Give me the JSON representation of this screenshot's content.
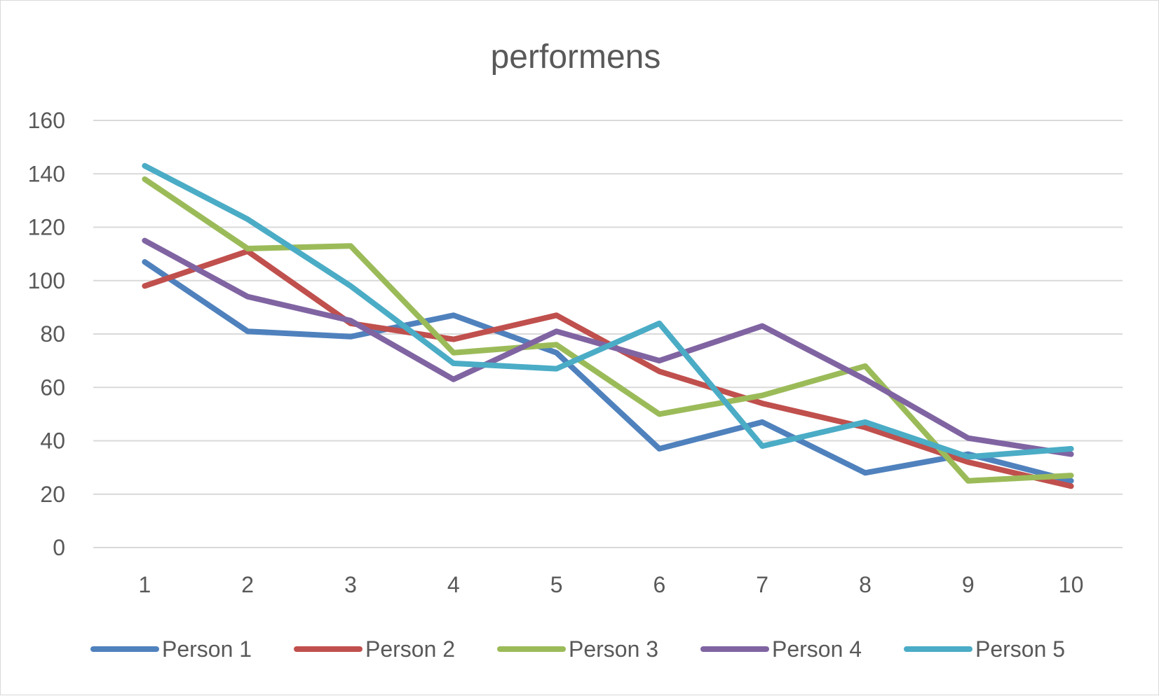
{
  "chart_data": {
    "type": "line",
    "title": "performens",
    "xlabel": "",
    "ylabel": "",
    "categories": [
      "1",
      "2",
      "3",
      "4",
      "5",
      "6",
      "7",
      "8",
      "9",
      "10"
    ],
    "ylim": [
      0,
      160
    ],
    "yticks": [
      0,
      20,
      40,
      60,
      80,
      100,
      120,
      140,
      160
    ],
    "grid": true,
    "legend_position": "bottom",
    "series": [
      {
        "name": "Person 1",
        "color": "#4f81bd",
        "values": [
          107,
          81,
          79,
          87,
          73,
          37,
          47,
          28,
          35,
          25
        ]
      },
      {
        "name": "Person 2",
        "color": "#c0504d",
        "values": [
          98,
          111,
          84,
          78,
          87,
          66,
          54,
          45,
          32,
          23
        ]
      },
      {
        "name": "Person 3",
        "color": "#9bbb59",
        "values": [
          138,
          112,
          113,
          73,
          76,
          50,
          57,
          68,
          25,
          27
        ]
      },
      {
        "name": "Person 4",
        "color": "#8064a2",
        "values": [
          115,
          94,
          85,
          63,
          81,
          70,
          83,
          63,
          41,
          35
        ]
      },
      {
        "name": "Person 5",
        "color": "#4bacc6",
        "values": [
          143,
          123,
          98,
          69,
          67,
          84,
          38,
          47,
          34,
          37
        ]
      }
    ]
  }
}
